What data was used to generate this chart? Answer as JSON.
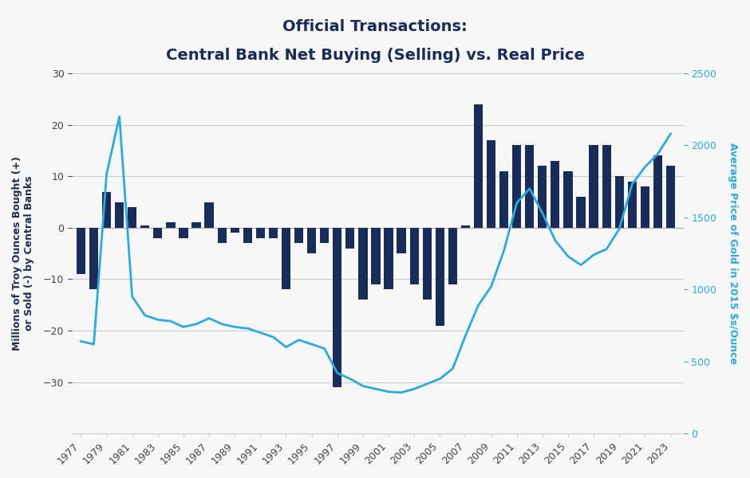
{
  "title_line1": "Official Transactions:",
  "title_line2": "Central Bank Net Buying (Selling) vs. Real Price",
  "years": [
    1977,
    1978,
    1979,
    1980,
    1981,
    1982,
    1983,
    1984,
    1985,
    1986,
    1987,
    1988,
    1989,
    1990,
    1991,
    1992,
    1993,
    1994,
    1995,
    1996,
    1997,
    1998,
    1999,
    2000,
    2001,
    2002,
    2003,
    2004,
    2005,
    2006,
    2007,
    2008,
    2009,
    2010,
    2011,
    2012,
    2013,
    2014,
    2015,
    2016,
    2017,
    2018,
    2019,
    2020,
    2021,
    2022,
    2023
  ],
  "bar_values": [
    -9,
    -12,
    7,
    5,
    4,
    0.5,
    -2,
    1,
    -2,
    1,
    5,
    -3,
    -1,
    -3,
    -2,
    -2,
    -12,
    -3,
    -5,
    -3,
    -31,
    -4,
    -14,
    -11,
    -12,
    -5,
    -11,
    -14,
    -19,
    -11,
    0.5,
    24,
    17,
    11,
    16,
    16,
    12,
    13,
    11,
    6,
    16,
    16,
    10,
    9,
    8,
    14,
    12
  ],
  "gold_price": [
    640,
    620,
    1800,
    2200,
    950,
    820,
    790,
    780,
    740,
    760,
    800,
    760,
    740,
    730,
    700,
    670,
    600,
    650,
    620,
    590,
    420,
    380,
    330,
    310,
    290,
    285,
    310,
    345,
    380,
    450,
    680,
    890,
    1020,
    1270,
    1600,
    1700,
    1530,
    1340,
    1230,
    1170,
    1240,
    1280,
    1420,
    1730,
    1850,
    1940,
    2080
  ],
  "bar_color": "#1a2d5a",
  "line_color": "#29abe2",
  "ylabel_left": "Millions of Troy Ounces Bought (+)\nor Sold (-) by Central Banks",
  "ylabel_right": "Average Price of Gold in 2015 $s/Ounce",
  "ylim_left": [
    -40,
    30
  ],
  "ylim_right": [
    0,
    2500
  ],
  "yticks_left": [
    -30,
    -20,
    -10,
    0,
    10,
    20,
    30
  ],
  "yticks_right": [
    0,
    500,
    1000,
    1500,
    2000,
    2500
  ],
  "xtick_labels": [
    "1977",
    "1979",
    "1981",
    "1983",
    "1985",
    "1987",
    "1989",
    "1991",
    "1993",
    "1995",
    "1997",
    "1999",
    "2001",
    "2003",
    "2005",
    "2007",
    "2009",
    "2011",
    "2013",
    "2015",
    "2017",
    "2019",
    "2021",
    "2023"
  ],
  "background_color": "#f7f7f7",
  "grid_color": "#cccccc",
  "title_color": "#1a2d5a",
  "title_fontsize": 14,
  "axis_label_fontsize": 9,
  "tick_fontsize": 9
}
